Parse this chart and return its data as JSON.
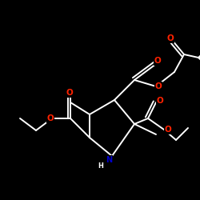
{
  "bg_color": "#000000",
  "bond_color": "#ffffff",
  "N_color": "#0000cc",
  "O_color": "#ff2200",
  "bond_lw": 1.4,
  "figsize": [
    2.5,
    2.5
  ],
  "dpi": 100,
  "xlim": [
    0,
    250
  ],
  "ylim": [
    0,
    250
  ]
}
